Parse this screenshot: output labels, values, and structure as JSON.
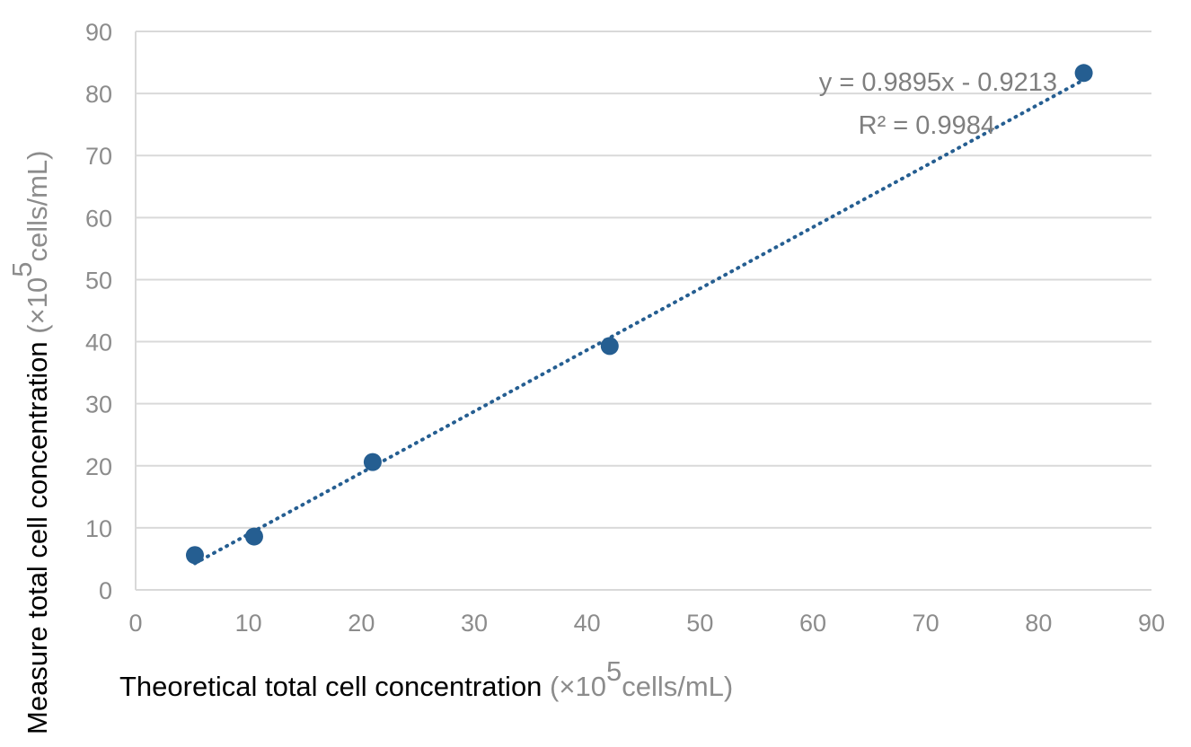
{
  "chart_data": {
    "type": "scatter",
    "title": "",
    "xlabel": {
      "main": "Theoretical total cell concentration",
      "unit_prefix": " (×10",
      "unit_sup": "5",
      "unit_suffix": "cells/mL)"
    },
    "ylabel": {
      "main": "Measure total cell concentration",
      "unit_prefix": " (×10",
      "unit_sup": "5",
      "unit_suffix": "cells/mL)"
    },
    "xlim": [
      0,
      90
    ],
    "ylim": [
      0,
      90
    ],
    "xticks": [
      "0",
      "10",
      "20",
      "30",
      "40",
      "50",
      "60",
      "70",
      "80",
      "90"
    ],
    "yticks": [
      "0",
      "10",
      "20",
      "30",
      "40",
      "50",
      "60",
      "70",
      "80",
      "90"
    ],
    "grid": true,
    "series": [
      {
        "x": [
          5.25,
          10.5,
          21,
          42,
          84
        ],
        "y": [
          5.6,
          8.6,
          20.6,
          39.3,
          83.3
        ],
        "color": "#255e91"
      }
    ],
    "trendline": {
      "type": "linear",
      "slope": 0.9895,
      "intercept": -0.9213,
      "x_range": [
        5.25,
        84
      ],
      "style": "dotted",
      "color": "#255e91"
    },
    "annotations": [
      "y = 0.9895x - 0.9213",
      "R² = 0.9984"
    ]
  }
}
